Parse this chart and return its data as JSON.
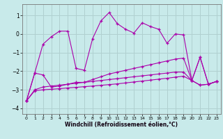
{
  "background_color": "#c8eaea",
  "grid_color": "#b0d0d0",
  "line_color": "#aa00aa",
  "xlabel": "Windchill (Refroidissement éolien,°C)",
  "xlim": [
    -0.5,
    23.5
  ],
  "ylim": [
    -4.3,
    1.6
  ],
  "yticks": [
    -4,
    -3,
    -2,
    -1,
    0,
    1
  ],
  "xticks": [
    0,
    1,
    2,
    3,
    4,
    5,
    6,
    7,
    8,
    9,
    10,
    11,
    12,
    13,
    14,
    15,
    16,
    17,
    18,
    19,
    20,
    21,
    22,
    23
  ],
  "series": [
    {
      "x": [
        0,
        1,
        2,
        3,
        4,
        5,
        6,
        7,
        8,
        9,
        10,
        11,
        12,
        13,
        14,
        15,
        16,
        17,
        18,
        19,
        20,
        21,
        22,
        23
      ],
      "y": [
        -3.6,
        -2.1,
        -0.55,
        -0.15,
        0.15,
        0.15,
        -1.85,
        -1.95,
        -0.25,
        0.7,
        1.15,
        0.55,
        0.25,
        0.05,
        0.6,
        0.4,
        0.25,
        -0.5,
        0.0,
        -0.05,
        -2.5,
        -1.25,
        -2.7,
        -2.55
      ]
    },
    {
      "x": [
        0,
        1,
        2,
        3,
        4,
        5,
        6,
        7,
        8,
        9,
        10,
        11,
        12,
        13,
        14,
        15,
        16,
        17,
        18,
        19,
        20,
        21,
        22,
        23
      ],
      "y": [
        -3.6,
        -2.1,
        -2.2,
        -2.85,
        -2.8,
        -2.7,
        -2.6,
        -2.6,
        -2.45,
        -2.3,
        -2.15,
        -2.05,
        -1.95,
        -1.85,
        -1.75,
        -1.65,
        -1.55,
        -1.45,
        -1.35,
        -1.3,
        -2.5,
        -1.25,
        -2.7,
        -2.55
      ]
    },
    {
      "x": [
        0,
        1,
        2,
        3,
        4,
        5,
        6,
        7,
        8,
        9,
        10,
        11,
        12,
        13,
        14,
        15,
        16,
        17,
        18,
        19,
        20,
        21,
        22,
        23
      ],
      "y": [
        -3.6,
        -3.0,
        -2.85,
        -2.8,
        -2.75,
        -2.7,
        -2.65,
        -2.6,
        -2.55,
        -2.5,
        -2.45,
        -2.4,
        -2.35,
        -2.3,
        -2.25,
        -2.2,
        -2.15,
        -2.1,
        -2.05,
        -2.05,
        -2.5,
        -2.75,
        -2.7,
        -2.55
      ]
    },
    {
      "x": [
        0,
        1,
        2,
        3,
        4,
        5,
        6,
        7,
        8,
        9,
        10,
        11,
        12,
        13,
        14,
        15,
        16,
        17,
        18,
        19,
        20,
        21,
        22,
        23
      ],
      "y": [
        -3.6,
        -3.05,
        -3.0,
        -2.97,
        -2.94,
        -2.9,
        -2.87,
        -2.83,
        -2.8,
        -2.76,
        -2.72,
        -2.68,
        -2.63,
        -2.58,
        -2.53,
        -2.48,
        -2.43,
        -2.38,
        -2.32,
        -2.27,
        -2.5,
        -2.75,
        -2.7,
        -2.55
      ]
    }
  ]
}
